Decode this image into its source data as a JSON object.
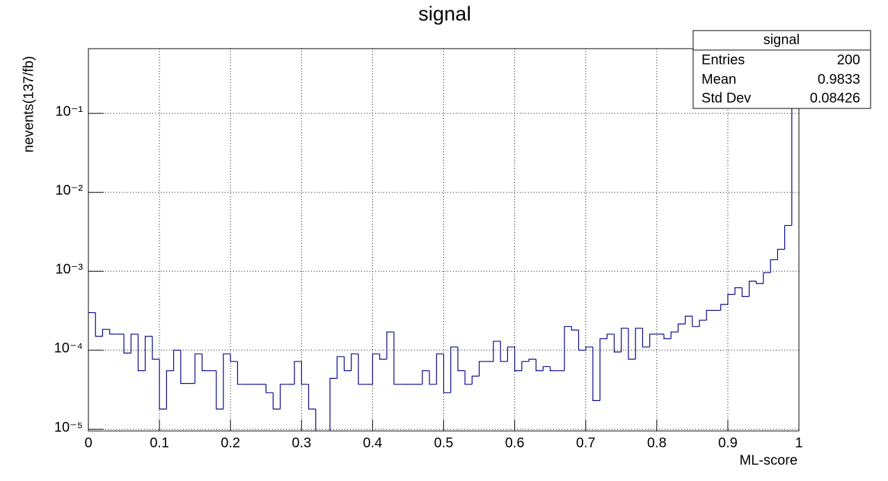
{
  "chart_data": {
    "type": "histogram",
    "title": "signal",
    "xlabel": "ML-score",
    "ylabel": "nevents(137/fb)",
    "log_y": true,
    "grid": true,
    "color": "#000088",
    "bins": [
      0,
      0.01,
      0.02,
      0.03,
      0.04,
      0.05,
      0.06,
      0.07,
      0.08,
      0.09,
      0.1,
      0.11,
      0.12,
      0.13,
      0.14,
      0.15,
      0.16,
      0.17,
      0.18,
      0.19,
      0.2,
      0.21,
      0.22,
      0.23,
      0.24,
      0.25,
      0.26,
      0.27,
      0.28,
      0.29,
      0.3,
      0.31,
      0.32,
      0.33,
      0.34,
      0.35,
      0.36,
      0.37,
      0.38,
      0.39,
      0.4,
      0.41,
      0.42,
      0.43,
      0.44,
      0.45,
      0.46,
      0.47,
      0.48,
      0.49,
      0.5,
      0.51,
      0.52,
      0.53,
      0.54,
      0.55,
      0.56,
      0.57,
      0.58,
      0.59,
      0.6,
      0.61,
      0.62,
      0.63,
      0.64,
      0.65,
      0.66,
      0.67,
      0.68,
      0.69,
      0.7,
      0.71,
      0.72,
      0.73,
      0.74,
      0.75,
      0.76,
      0.77,
      0.78,
      0.79,
      0.8,
      0.81,
      0.82,
      0.83,
      0.84,
      0.85,
      0.86,
      0.87,
      0.88,
      0.89,
      0.9,
      0.91,
      0.92,
      0.93,
      0.94,
      0.95,
      0.96,
      0.97,
      0.98,
      0.99,
      1
    ],
    "values": [
      0.0003,
      0.00015,
      0.000184,
      0.00016,
      0.00016,
      9.2e-05,
      0.00016,
      5.5e-05,
      0.00015,
      7.7e-05,
      1.8e-05,
      5.5e-05,
      0.0001,
      3.8e-05,
      3.8e-05,
      9e-05,
      5.5e-05,
      5.5e-05,
      1.8e-05,
      9e-05,
      7.2e-05,
      3.7e-05,
      3.7e-05,
      3.7e-05,
      3.7e-05,
      2.9e-05,
      1.8e-05,
      3.7e-05,
      3.7e-05,
      7.2e-05,
      3.7e-05,
      1.8e-05,
      0,
      0,
      4.4e-05,
      8.3e-05,
      5.5e-05,
      9e-05,
      3.7e-05,
      3.7e-05,
      9e-05,
      7.7e-05,
      0.00017,
      3.7e-05,
      3.7e-05,
      3.7e-05,
      3.7e-05,
      5.5e-05,
      3.7e-05,
      9e-05,
      2.9e-05,
      0.00011,
      5.5e-05,
      3.7e-05,
      4.7e-05,
      7.2e-05,
      7.2e-05,
      0.00013,
      7.2e-05,
      0.00011,
      5.5e-05,
      7.2e-05,
      7.7e-05,
      5.5e-05,
      6.2e-05,
      5.5e-05,
      5.5e-05,
      0.0002,
      0.00018,
      0.0001,
      0.00011,
      2.3e-05,
      0.00014,
      0.00016,
      9.5e-05,
      0.00019,
      7.7e-05,
      0.00019,
      0.00011,
      0.00016,
      0.00016,
      0.00014,
      0.00017,
      0.000215,
      0.00027,
      0.0002,
      0.00024,
      0.00032,
      0.00032,
      0.00038,
      0.00051,
      0.00062,
      0.00048,
      0.00075,
      0.0007,
      0.00096,
      0.0014,
      0.0019,
      0.0038,
      0.9
    ],
    "xlim": [
      0,
      1
    ],
    "ylim": [
      9.5e-06,
      0.66
    ],
    "xticks": [
      0,
      0.1,
      0.2,
      0.3,
      0.4,
      0.5,
      0.6,
      0.7,
      0.8,
      0.9,
      1
    ],
    "yticks": [
      {
        "value": 1e-05,
        "label": "10⁻⁵"
      },
      {
        "value": 0.0001,
        "label": "10⁻⁴"
      },
      {
        "value": 0.001,
        "label": "10⁻³"
      },
      {
        "value": 0.01,
        "label": "10⁻²"
      },
      {
        "value": 0.1,
        "label": "10⁻¹"
      }
    ],
    "stats_box": {
      "title": "signal",
      "rows": [
        [
          "Entries",
          "200"
        ],
        [
          "Mean",
          "0.9833"
        ],
        [
          "Std Dev",
          "0.08426"
        ]
      ]
    }
  }
}
